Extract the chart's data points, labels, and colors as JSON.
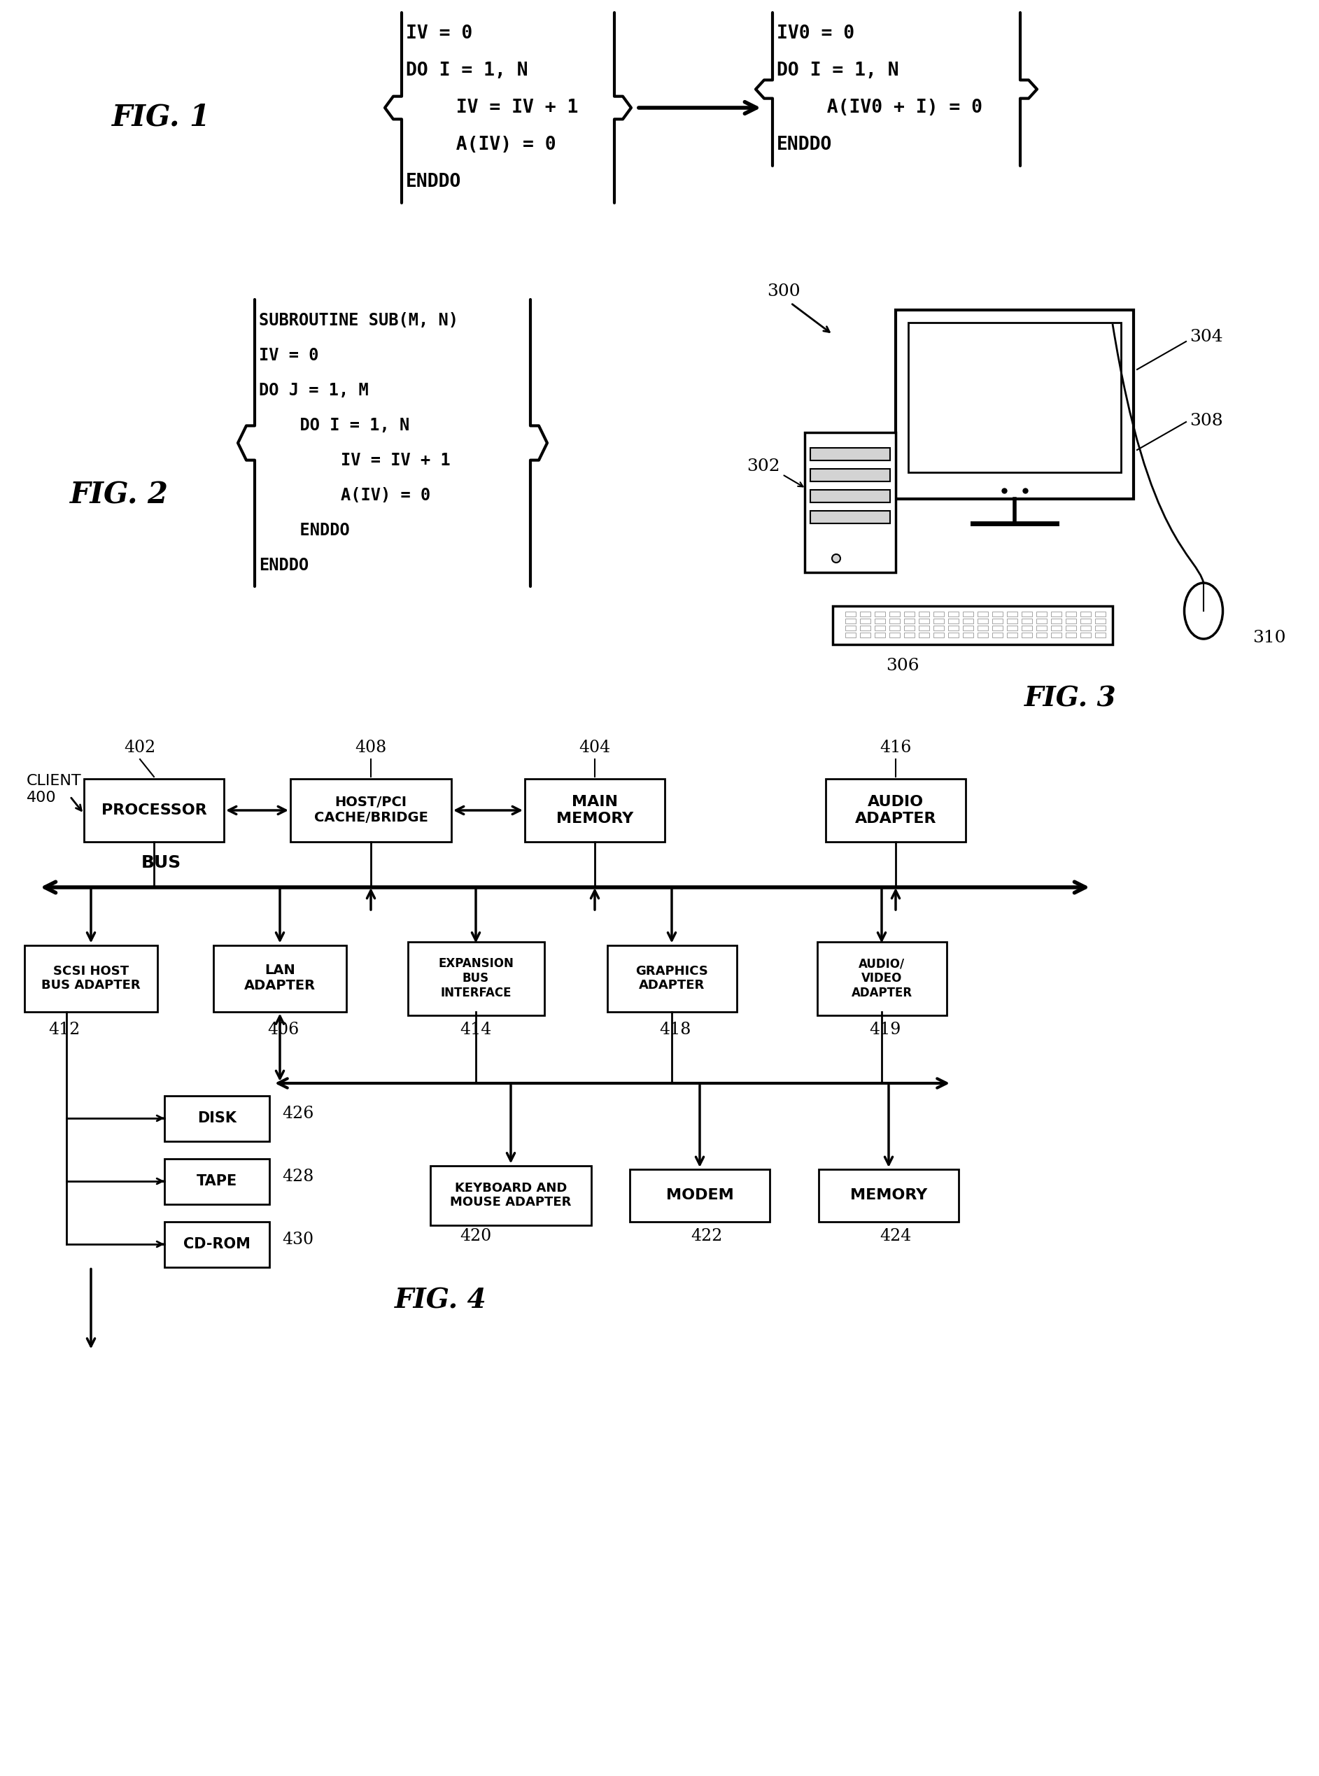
{
  "fig1_left_code": [
    "IV = 0",
    "DO I = 1, N",
    "  IV = IV + 1",
    "  A(IV) = 0",
    "ENDDO"
  ],
  "fig1_right_code": [
    "IV0 = 0",
    "DO I = 1, N",
    "  A(IV0 + I) = 0",
    "ENDDO"
  ],
  "fig2_code": [
    "SUBROUTINE SUB(M, N)",
    "IV = 0",
    "DO J = 1, M",
    "  DO I = 1, N",
    "    IV = IV + 1",
    "    A(IV) = 0",
    "  ENDDO",
    "ENDDO"
  ],
  "background_color": "#ffffff"
}
